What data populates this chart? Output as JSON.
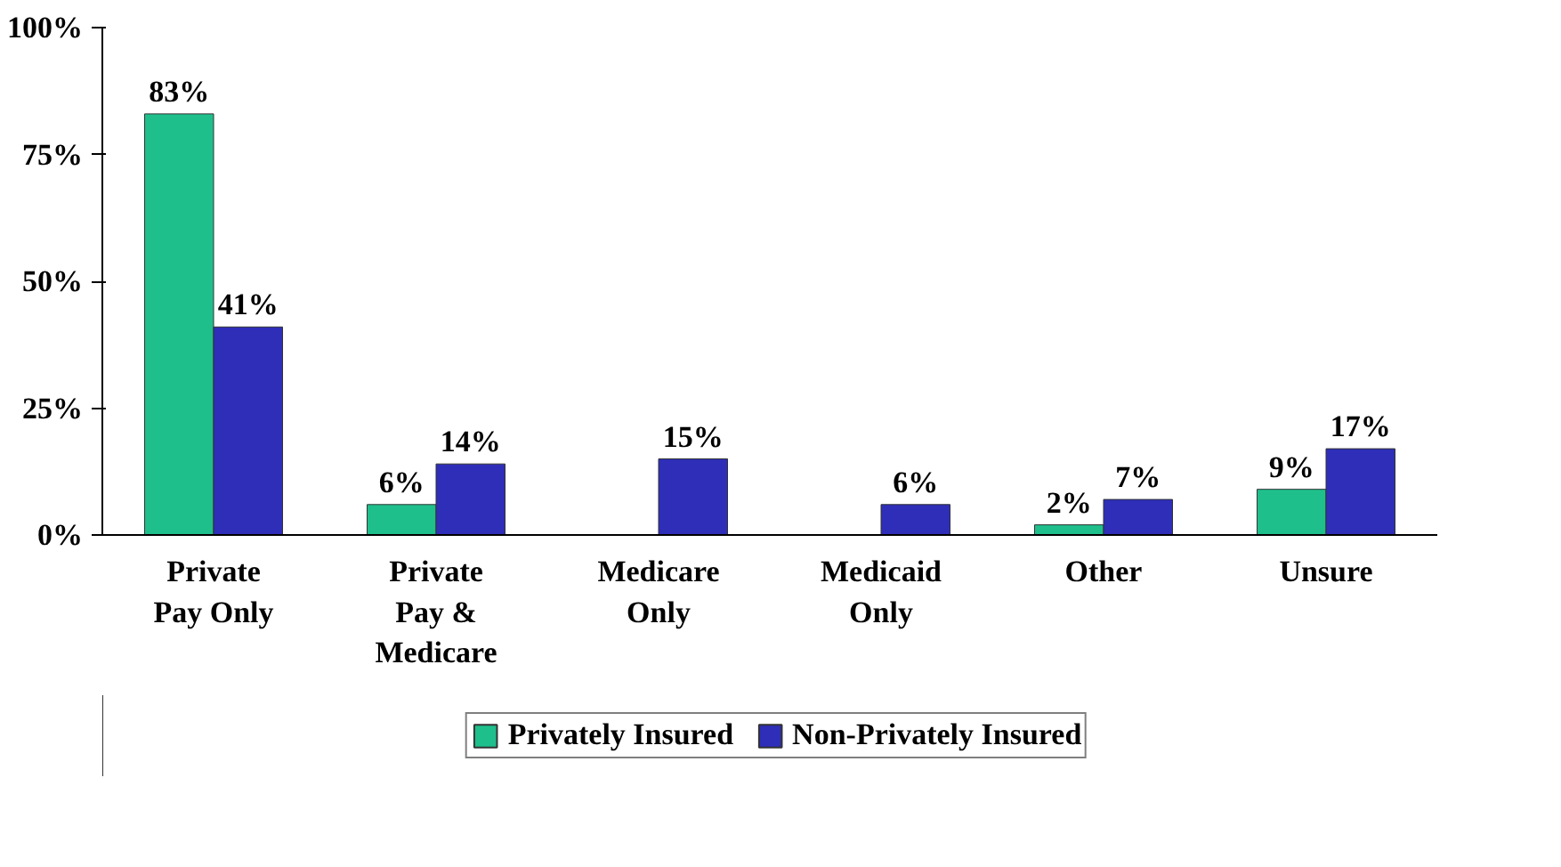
{
  "chart_data": {
    "type": "bar",
    "categories": [
      "Private\nPay Only",
      "Private\nPay &\nMedicare",
      "Medicare\nOnly",
      "Medicaid\nOnly",
      "Other",
      "Unsure"
    ],
    "series": [
      {
        "name": "Privately Insured",
        "color": "#1fbf8c",
        "values": [
          83,
          6,
          null,
          null,
          2,
          9
        ],
        "value_labels": [
          "83%",
          "6%",
          null,
          null,
          "2%",
          "9%"
        ]
      },
      {
        "name": "Non-Privately Insured",
        "color": "#2e2eb8",
        "values": [
          41,
          14,
          15,
          6,
          7,
          17
        ],
        "value_labels": [
          "41%",
          "14%",
          "15%",
          "6%",
          "7%",
          "17%"
        ]
      }
    ],
    "ylim": [
      0,
      100
    ],
    "yticks": [
      {
        "value": 0,
        "label": "0%"
      },
      {
        "value": 25,
        "label": "25%"
      },
      {
        "value": 50,
        "label": "50%"
      },
      {
        "value": 75,
        "label": "75%"
      },
      {
        "value": 100,
        "label": "100%"
      }
    ],
    "grid": false,
    "legend": "bottom"
  }
}
